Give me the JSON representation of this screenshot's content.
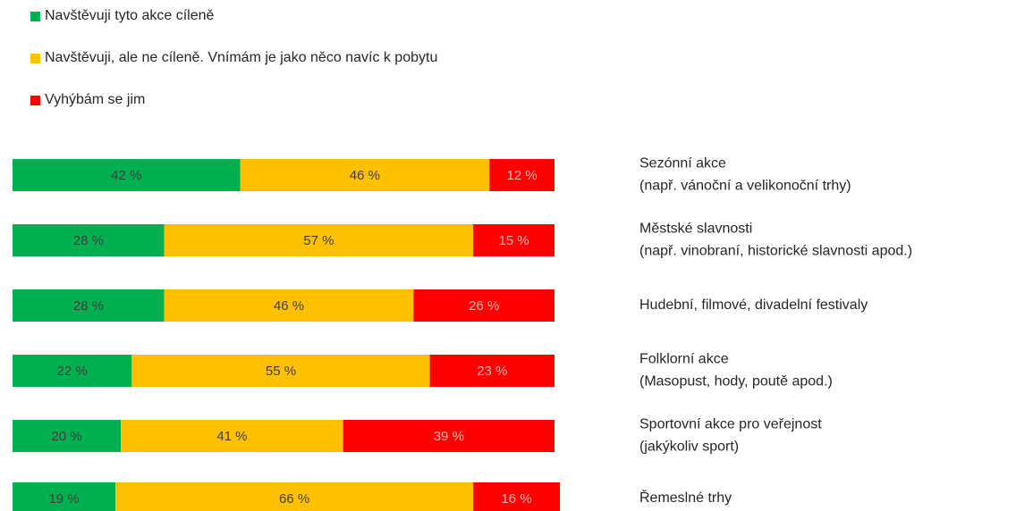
{
  "chart_data": {
    "type": "bar",
    "orientation": "horizontal",
    "stacked": true,
    "categories": [
      [
        "Sezónní akce",
        "(např. vánoční a velikonoční trhy)"
      ],
      [
        "Městské slavnosti",
        "(např. vinobraní, historické slavnosti apod.)"
      ],
      [
        "Hudební, filmové, divadelní festivaly"
      ],
      [
        "Folklorní akce",
        "(Masopust, hody, poutě apod.)"
      ],
      [
        "Sportovní akce pro veřejnost",
        "(jakýkoliv sport)"
      ],
      [
        "Řemeslné trhy"
      ]
    ],
    "series": [
      {
        "name": "Navštěvuji tyto akce cíleně",
        "color": "#00b050",
        "values": [
          42,
          28,
          28,
          22,
          20,
          19
        ],
        "value_labels": [
          "42 %",
          "28 %",
          "28 %",
          "22 %",
          "20 %",
          "19 %"
        ]
      },
      {
        "name": "Navštěvuji, ale ne cíleně. Vnímám je jako něco navíc k pobytu",
        "color": "#ffc000",
        "values": [
          46,
          57,
          46,
          55,
          41,
          66
        ],
        "value_labels": [
          "46 %",
          "57 %",
          "46 %",
          "55 %",
          "41 %",
          "66 %"
        ]
      },
      {
        "name": "Vyhýbám se jim",
        "color": "#ff0000",
        "values": [
          12,
          15,
          26,
          23,
          39,
          16
        ],
        "value_labels": [
          "12 %",
          "15 %",
          "26 %",
          "23 %",
          "39 %",
          "16 %"
        ]
      }
    ],
    "legend": "top-left"
  }
}
